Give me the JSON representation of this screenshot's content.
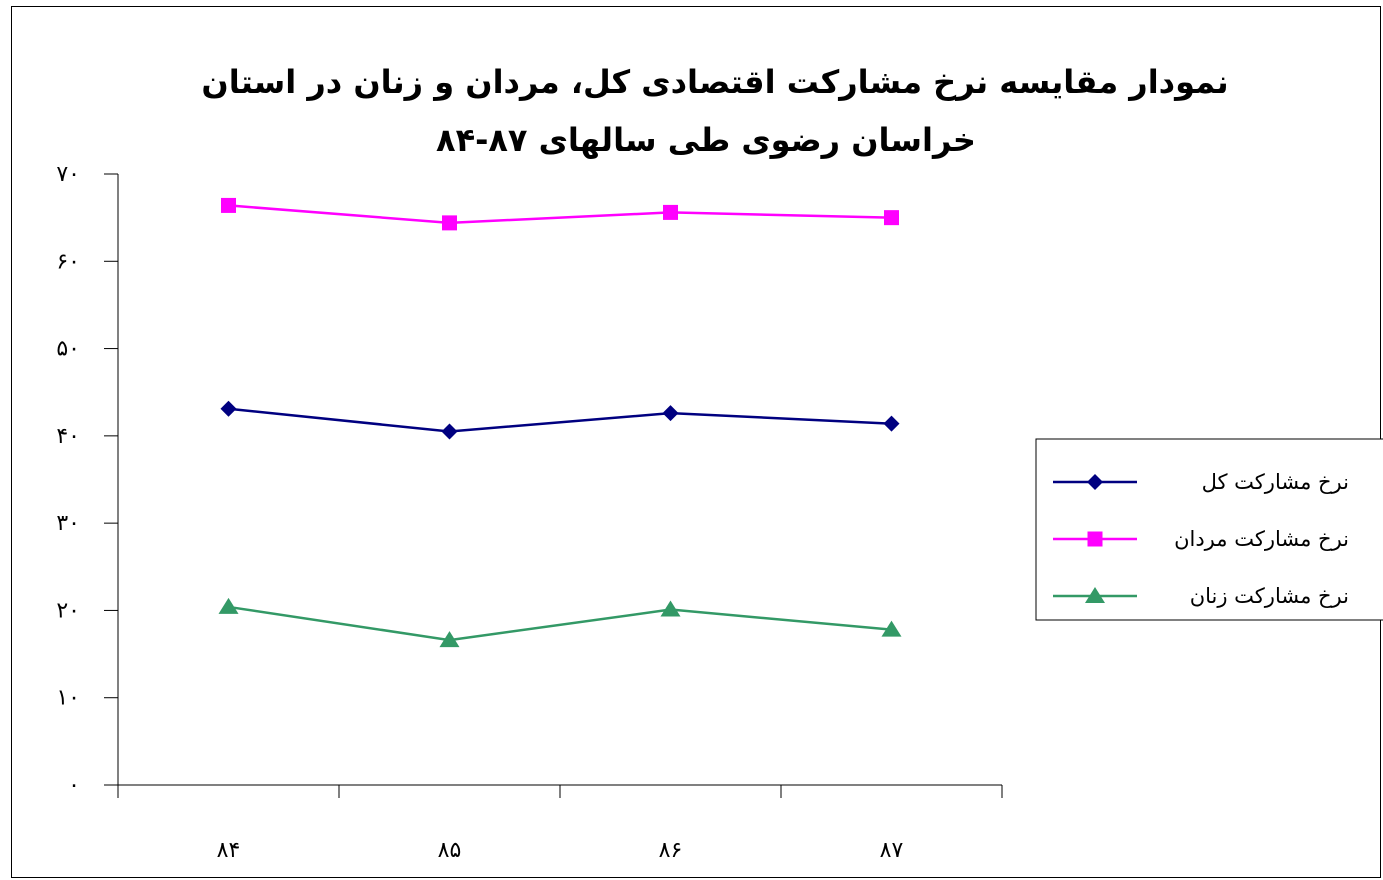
{
  "chart_data": {
    "type": "line",
    "title_line1": "نمودار مقایسه نرخ مشارکت اقتصادی کل، مردان و زنان در استان",
    "title_line2": "خراسان رضوی طی سالهای ۸۷-۸۴",
    "categories": [
      "۸۴",
      "۸۵",
      "۸۶",
      "۸۷"
    ],
    "y_ticks": [
      "۰",
      "۱۰",
      "۲۰",
      "۳۰",
      "۴۰",
      "۵۰",
      "۶۰",
      "۷۰"
    ],
    "ylim": [
      0,
      70
    ],
    "grid": false,
    "legend_position": "right",
    "series": [
      {
        "name": "نرخ مشارکت کل",
        "values": [
          43.1,
          40.5,
          42.6,
          41.4
        ],
        "color": "#000080",
        "marker": "diamond"
      },
      {
        "name": "نرخ مشارکت مردان",
        "values": [
          66.4,
          64.4,
          65.6,
          65.0
        ],
        "color": "#ff00ff",
        "marker": "square"
      },
      {
        "name": "نرخ مشارکت زنان",
        "values": [
          20.4,
          16.6,
          20.1,
          17.8
        ],
        "color": "#339966",
        "marker": "triangle"
      }
    ]
  }
}
